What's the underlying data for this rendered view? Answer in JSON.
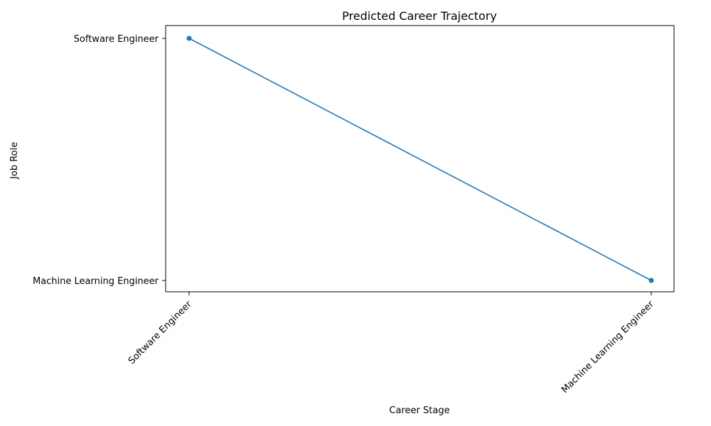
{
  "chart_data": {
    "type": "line",
    "title": "Predicted Career Trajectory",
    "xlabel": "Career Stage",
    "ylabel": "Job Role",
    "categories": [
      "Software Engineer",
      "Machine Learning Engineer"
    ],
    "y_categories": [
      "Machine Learning Engineer",
      "Software Engineer"
    ],
    "series": [
      {
        "x": [
          "Software Engineer",
          "Machine Learning Engineer"
        ],
        "y": [
          "Software Engineer",
          "Machine Learning Engineer"
        ],
        "color": "#1f77b4",
        "marker": "circle"
      }
    ],
    "grid": false,
    "legend": "none",
    "x_tick_rotation_deg": 45
  }
}
